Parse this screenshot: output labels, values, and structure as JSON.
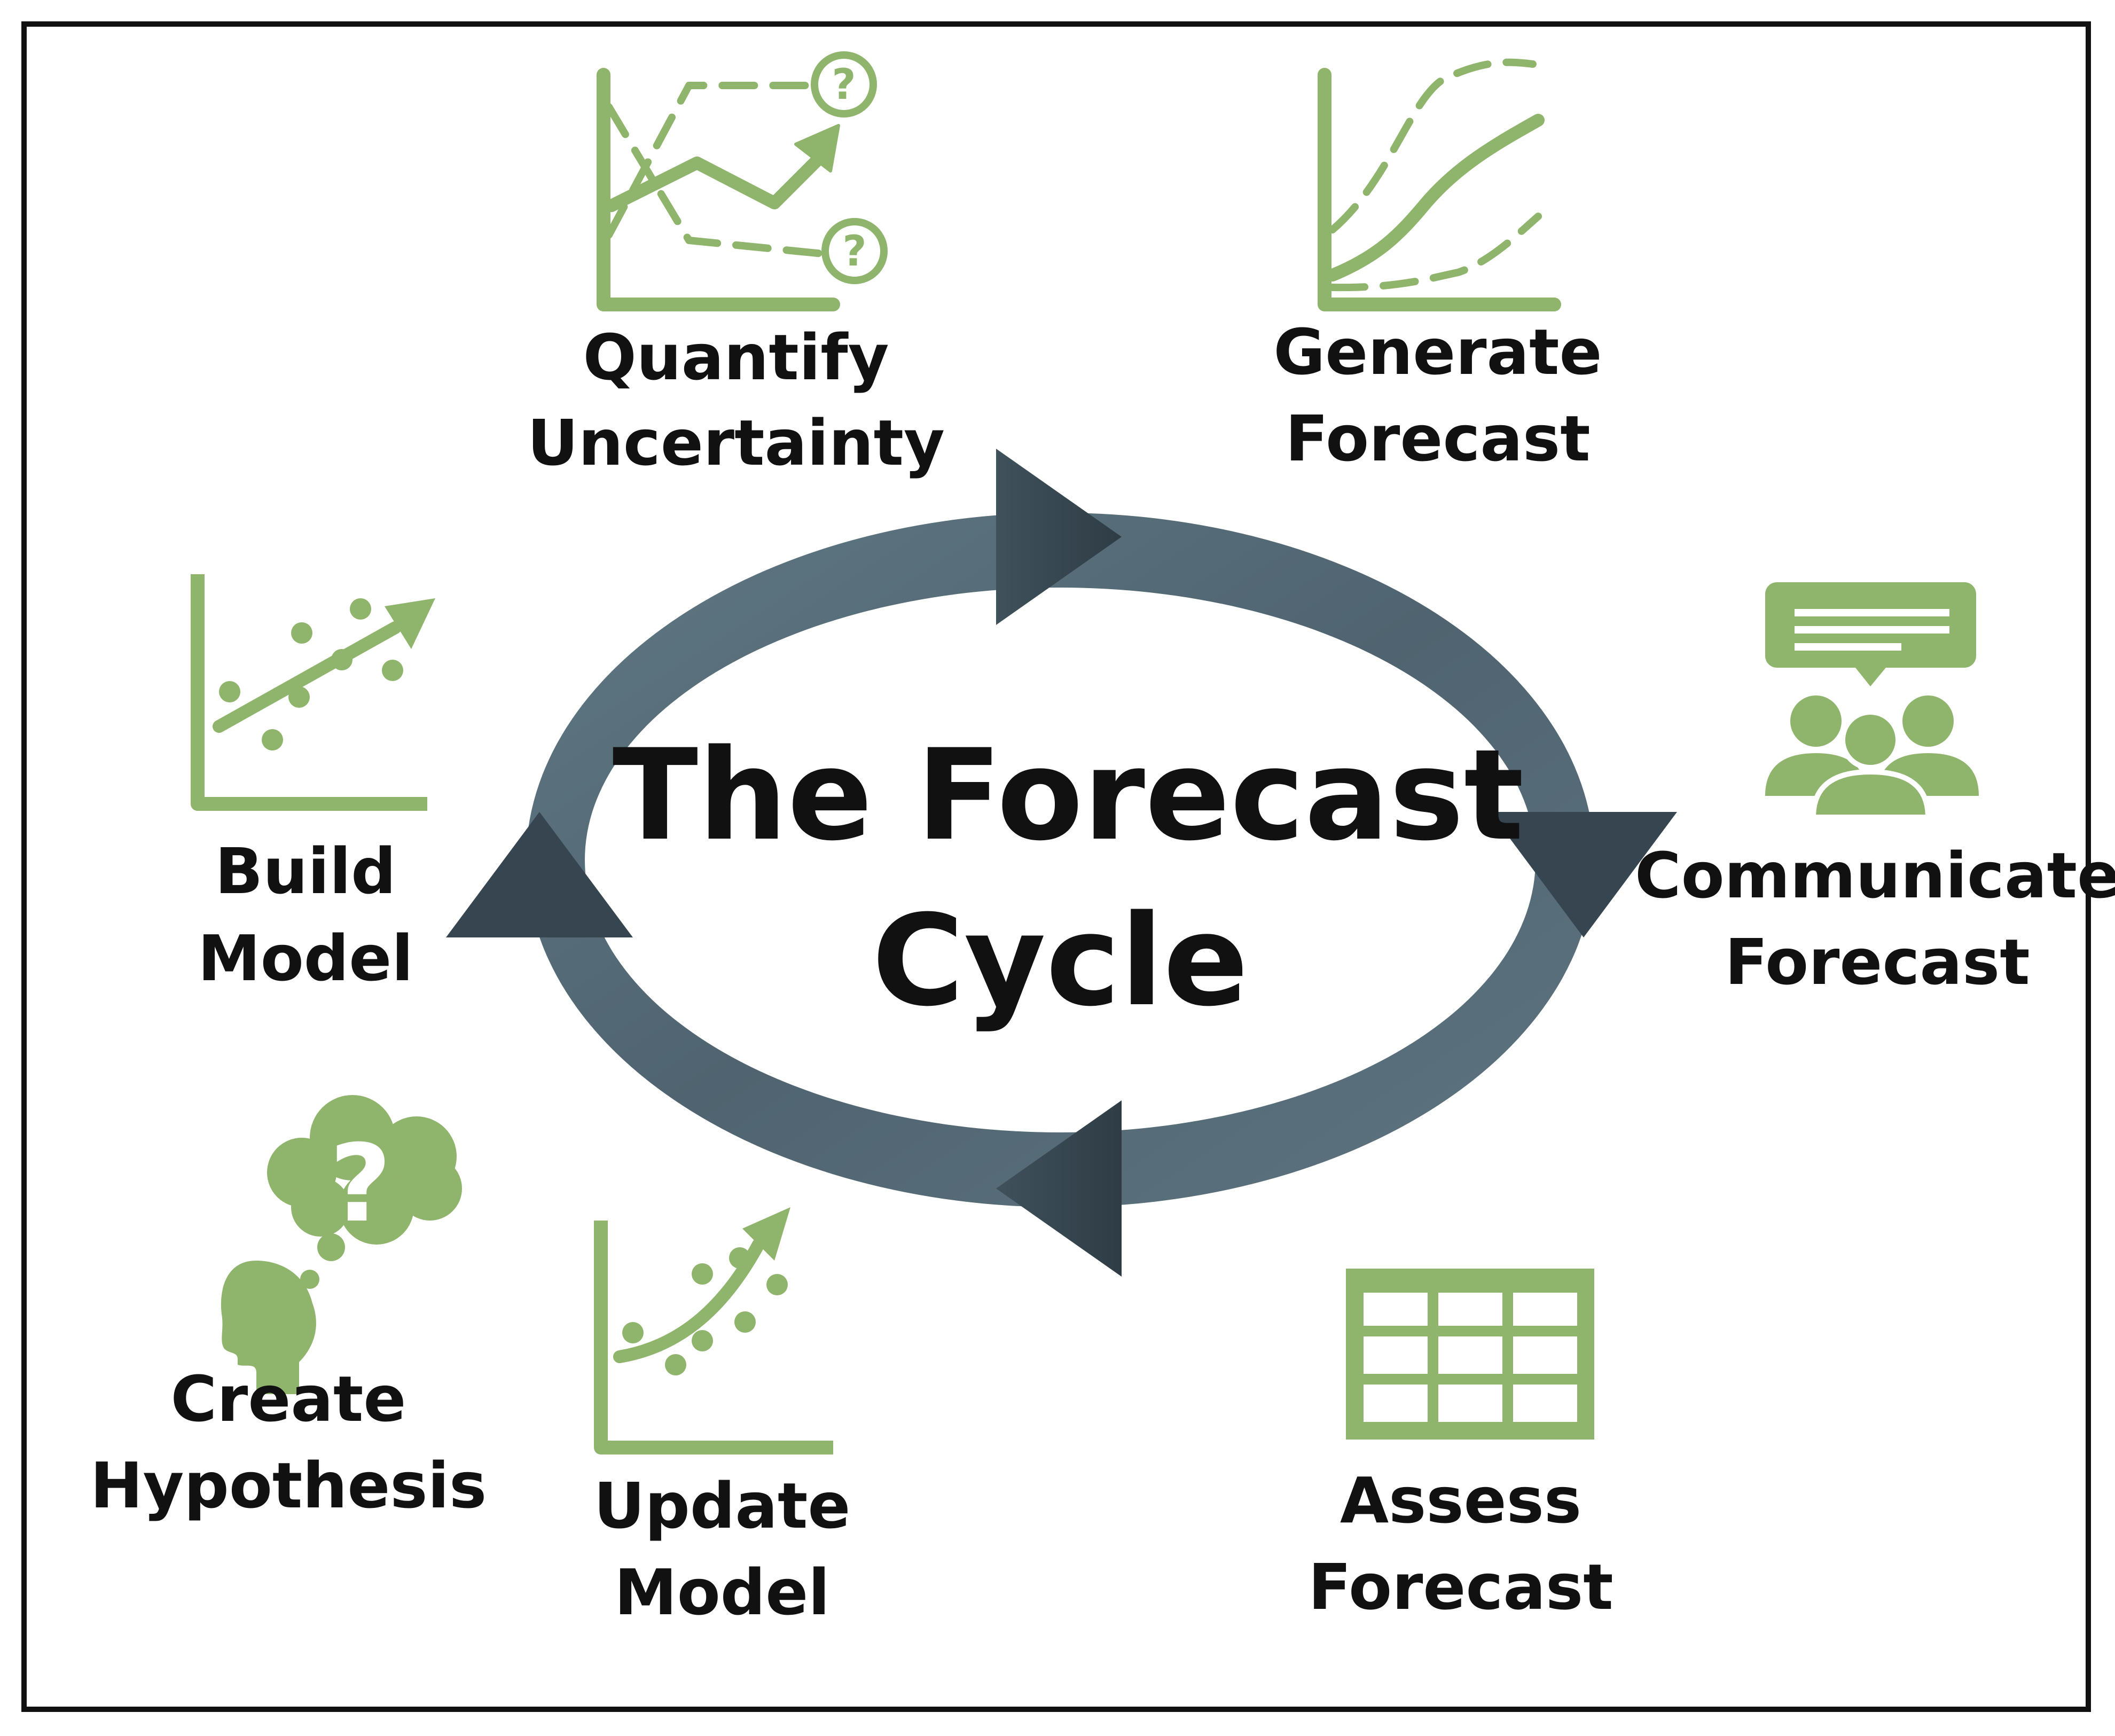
{
  "diagram": {
    "title_line1": "The Forecast",
    "title_line2": "Cycle",
    "colors": {
      "icon_green": "#8fb46b",
      "ring_light": "#607885",
      "ring_dark": "#34434d",
      "text": "#111111",
      "border": "#111111",
      "background": "#ffffff"
    },
    "steps": [
      {
        "icon": "quantify-uncertainty-icon",
        "line1": "Quantify",
        "line2": "Uncertainty",
        "glyph": "?"
      },
      {
        "icon": "generate-forecast-icon",
        "line1": "Generate",
        "line2": "Forecast"
      },
      {
        "icon": "communicate-forecast-icon",
        "line1": "Communicate",
        "line2": "Forecast"
      },
      {
        "icon": "assess-forecast-icon",
        "line1": "Assess",
        "line2": "Forecast"
      },
      {
        "icon": "update-model-icon",
        "line1": "Update",
        "line2": "Model"
      },
      {
        "icon": "create-hypothesis-icon",
        "line1": "Create",
        "line2": "Hypothesis",
        "glyph": "?"
      },
      {
        "icon": "build-model-icon",
        "line1": "Build",
        "line2": "Model"
      }
    ]
  }
}
